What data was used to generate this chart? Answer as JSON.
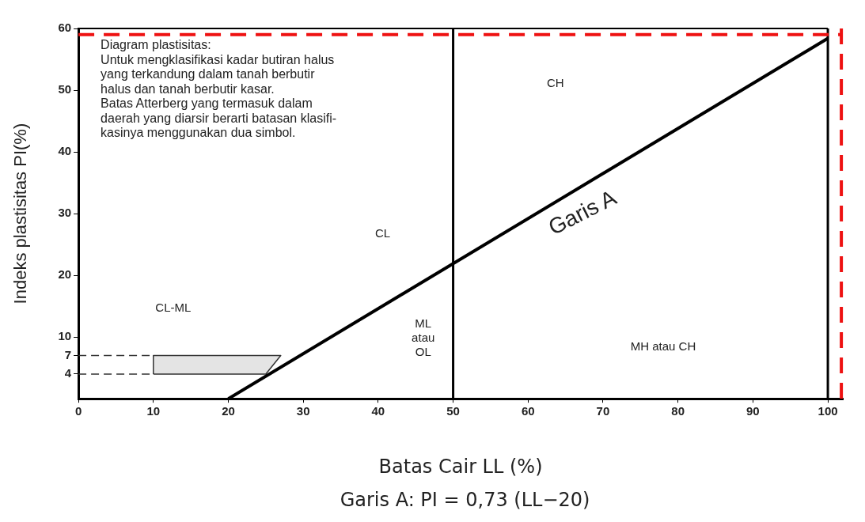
{
  "chart_data": {
    "type": "line",
    "xlabel": "Batas Cair LL (%)",
    "ylabel": "Indeks plastisitas PI(%)",
    "xlim": [
      0,
      102
    ],
    "xticks": [
      0,
      10,
      20,
      30,
      40,
      50,
      60,
      70,
      80,
      90,
      100
    ],
    "ylim": [
      0,
      60
    ],
    "yticks": [
      4,
      7,
      10,
      20,
      30,
      40,
      50,
      60
    ],
    "grid": false,
    "legend": false,
    "marker": "none",
    "series": [
      {
        "type": "line",
        "color": "#000000",
        "x": [
          20,
          100
        ],
        "values": [
          0,
          58.4
        ]
      },
      {
        "type": "line",
        "color": "#333333",
        "line_style": "dashed",
        "x": [
          0,
          10
        ],
        "values": [
          4,
          4
        ]
      },
      {
        "type": "line",
        "color": "#333333",
        "line_style": "dashed",
        "x": [
          0,
          10
        ],
        "values": [
          7,
          7
        ]
      },
      {
        "type": "area",
        "color": "#333333",
        "x": [
          10,
          10,
          27,
          25,
          10
        ],
        "values": [
          4,
          7,
          7,
          4,
          4
        ]
      }
    ],
    "ref_lines": [
      {
        "axis": "x",
        "value": 50,
        "color": "#000000"
      },
      {
        "axis": "x",
        "value": 100,
        "color": "#000000"
      },
      {
        "axis": "y",
        "value": 59,
        "color": "#ee1111",
        "line_style": "dashed"
      },
      {
        "axis": "x",
        "value": 101.8,
        "color": "#ee1111",
        "line_style": "dashed"
      }
    ],
    "annotations": [
      "Diagram plastisitas:\nUntuk mengklasifikasi kadar butiran halus\nyang terkandung dalam tanah berbutir\nhalus dan tanah berbutir kasar.\nBatas Atterberg yang termasuk dalam\ndaerah yang diarsir berarti batasan klasifi-\nkasinya menggunakan dua simbol.",
      "Garis A: PI = 0,73 (LL−20)",
      "CL",
      "CH",
      "ML\natau\nOL",
      "MH atau CH",
      "Garis A",
      "CL-ML"
    ]
  }
}
